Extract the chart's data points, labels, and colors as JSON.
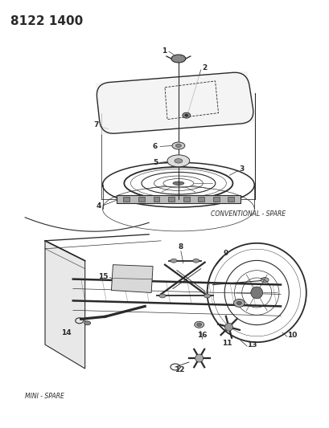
{
  "title_text": "8122 1400",
  "bg_color": "#ffffff",
  "line_color": "#2a2a2a",
  "label_fontsize": 6.5,
  "section_label_1": "CONVENTIONAL - SPARE",
  "section_label_2": "MINI - SPARE"
}
